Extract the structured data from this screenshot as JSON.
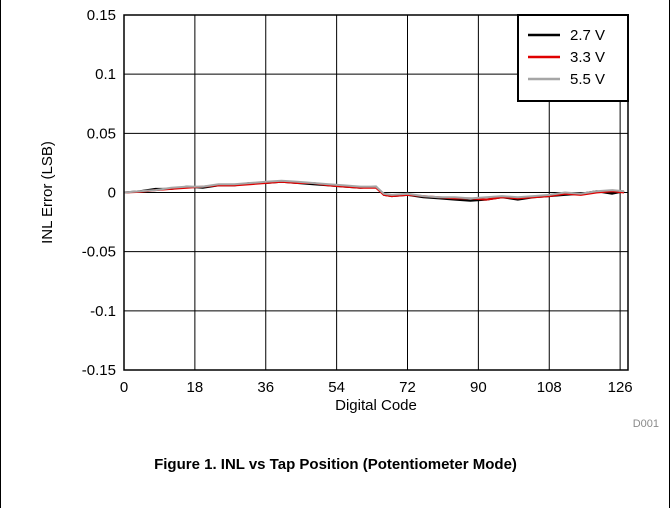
{
  "chart_data": {
    "type": "line",
    "xlabel": "Digital Code",
    "ylabel": "INL Error (LSB)",
    "xlim": [
      0,
      128
    ],
    "ylim": [
      -0.15,
      0.15
    ],
    "x_ticks": [
      0,
      18,
      36,
      54,
      72,
      90,
      108,
      126
    ],
    "y_ticks": [
      0.15,
      0.1,
      0.05,
      0,
      -0.05,
      -0.1,
      -0.15
    ],
    "y_tick_labels": [
      "0.15",
      "0.1",
      "0.05",
      "0",
      "-0.05",
      "-0.1",
      "-0.15"
    ],
    "grid": true,
    "legend_position": "top-right",
    "x": [
      0,
      4,
      8,
      12,
      16,
      20,
      24,
      28,
      32,
      36,
      40,
      44,
      48,
      52,
      56,
      60,
      64,
      66,
      68,
      72,
      76,
      80,
      84,
      88,
      92,
      96,
      100,
      104,
      108,
      112,
      116,
      120,
      124,
      127
    ],
    "series": [
      {
        "name": "2.7 V",
        "color": "#000000",
        "values": [
          0,
          0.001,
          0.003,
          0.003,
          0.005,
          0.004,
          0.006,
          0.006,
          0.008,
          0.008,
          0.009,
          0.008,
          0.007,
          0.006,
          0.005,
          0.004,
          0.005,
          -0.002,
          -0.003,
          -0.002,
          -0.004,
          -0.005,
          -0.006,
          -0.007,
          -0.006,
          -0.004,
          -0.006,
          -0.004,
          -0.003,
          -0.002,
          -0.001,
          0.001,
          -0.001,
          0.001
        ]
      },
      {
        "name": "3.3 V",
        "color": "#e00000",
        "values": [
          0,
          0.0005,
          0.002,
          0.003,
          0.004,
          0.005,
          0.006,
          0.006,
          0.007,
          0.008,
          0.009,
          0.008,
          0.008,
          0.006,
          0.005,
          0.004,
          0.004,
          -0.002,
          -0.003,
          -0.002,
          -0.003,
          -0.004,
          -0.005,
          -0.005,
          -0.006,
          -0.004,
          -0.005,
          -0.004,
          -0.003,
          -0.001,
          -0.002,
          0,
          0.001,
          0
        ]
      },
      {
        "name": "5.5 V",
        "color": "#a6a6a6",
        "values": [
          0,
          0.001,
          0.002,
          0.004,
          0.005,
          0.005,
          0.007,
          0.007,
          0.008,
          0.009,
          0.01,
          0.009,
          0.008,
          0.007,
          0.006,
          0.005,
          0.005,
          -0.001,
          -0.002,
          -0.001,
          -0.003,
          -0.004,
          -0.004,
          -0.005,
          -0.004,
          -0.003,
          -0.004,
          -0.003,
          -0.002,
          0,
          -0.001,
          0.001,
          0.002,
          0.001
        ]
      }
    ]
  },
  "figure_id": "D001",
  "caption": "Figure 1. INL vs Tap Position (Potentiometer Mode)"
}
